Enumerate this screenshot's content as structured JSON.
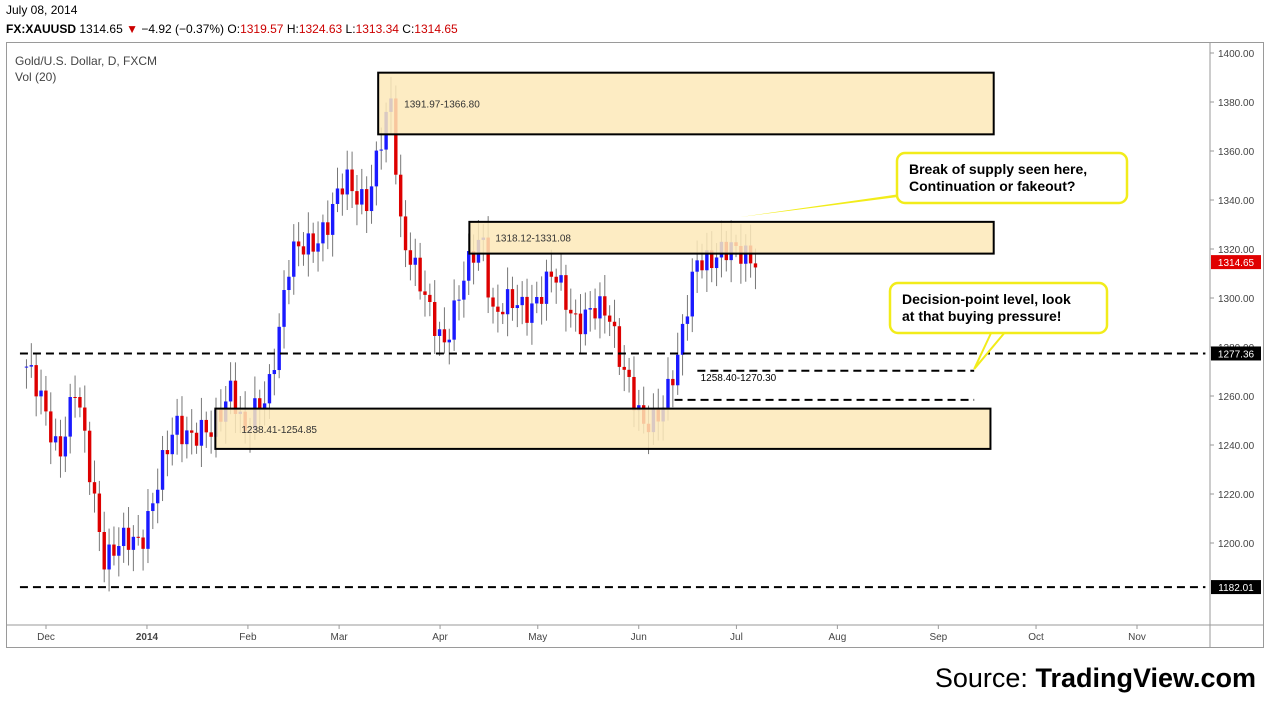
{
  "header": {
    "date": "July 08, 2014",
    "symbol": "FX:XAUUSD",
    "last": "1314.65",
    "change": "−4.92 (−0.37%)",
    "o_label": "O:",
    "o": "1319.57",
    "h_label": "H:",
    "h": "1324.63",
    "l_label": "L:",
    "l": "1313.34",
    "c_label": "C:",
    "c": "1314.65"
  },
  "chart_title": "Gold/U.S. Dollar, D, FXCM",
  "volume_label": "Vol (20)",
  "source_prefix": "Source: ",
  "source_brand": "TradingView.com",
  "colors": {
    "up": "#1a1aff",
    "down": "#dd0000",
    "zone_fill": "#fde9b8",
    "callout": "#f2ec1a",
    "last_price_bg": "#e00000"
  },
  "chart_data": {
    "type": "candlestick",
    "title": "Gold/U.S. Dollar, D, FXCM",
    "ylim": [
      1172,
      1405
    ],
    "y_ticks": [
      "1400.00",
      "1380.00",
      "1360.00",
      "1340.00",
      "1320.00",
      "1300.00",
      "1280.00",
      "1260.00",
      "1240.00",
      "1220.00",
      "1200.00"
    ],
    "x_range": [
      "2013-11-23",
      "2014-11-22"
    ],
    "x_ticks": [
      {
        "date": "2013-12-01",
        "label": "Dec",
        "bold": false
      },
      {
        "date": "2014-01-01",
        "label": "2014",
        "bold": true
      },
      {
        "date": "2014-02-01",
        "label": "Feb",
        "bold": false
      },
      {
        "date": "2014-03-01",
        "label": "Mar",
        "bold": false
      },
      {
        "date": "2014-04-01",
        "label": "Apr",
        "bold": false
      },
      {
        "date": "2014-05-01",
        "label": "May",
        "bold": false
      },
      {
        "date": "2014-06-01",
        "label": "Jun",
        "bold": false
      },
      {
        "date": "2014-07-01",
        "label": "Jul",
        "bold": false
      },
      {
        "date": "2014-08-01",
        "label": "Aug",
        "bold": false
      },
      {
        "date": "2014-09-01",
        "label": "Sep",
        "bold": false
      },
      {
        "date": "2014-10-01",
        "label": "Oct",
        "bold": false
      },
      {
        "date": "2014-11-01",
        "label": "Nov",
        "bold": false
      }
    ],
    "path_points": [
      {
        "date": "2013-11-25",
        "price": 1272
      },
      {
        "date": "2013-12-05",
        "price": 1238
      },
      {
        "date": "2013-12-10",
        "price": 1262
      },
      {
        "date": "2013-12-19",
        "price": 1195
      },
      {
        "date": "2013-12-30",
        "price": 1202
      },
      {
        "date": "2014-01-10",
        "price": 1248
      },
      {
        "date": "2014-01-21",
        "price": 1243
      },
      {
        "date": "2014-01-27",
        "price": 1267
      },
      {
        "date": "2014-01-31",
        "price": 1243
      },
      {
        "date": "2014-02-07",
        "price": 1262
      },
      {
        "date": "2014-02-14",
        "price": 1315
      },
      {
        "date": "2014-02-26",
        "price": 1331
      },
      {
        "date": "2014-03-03",
        "price": 1348
      },
      {
        "date": "2014-03-10",
        "price": 1340
      },
      {
        "date": "2014-03-17",
        "price": 1380
      },
      {
        "date": "2014-03-20",
        "price": 1330
      },
      {
        "date": "2014-03-28",
        "price": 1295
      },
      {
        "date": "2014-04-02",
        "price": 1283
      },
      {
        "date": "2014-04-14",
        "price": 1327
      },
      {
        "date": "2014-04-17",
        "price": 1295
      },
      {
        "date": "2014-04-28",
        "price": 1297
      },
      {
        "date": "2014-05-06",
        "price": 1308
      },
      {
        "date": "2014-05-13",
        "price": 1292
      },
      {
        "date": "2014-05-23",
        "price": 1294
      },
      {
        "date": "2014-06-02",
        "price": 1245
      },
      {
        "date": "2014-06-06",
        "price": 1252
      },
      {
        "date": "2014-06-13",
        "price": 1273
      },
      {
        "date": "2014-06-19",
        "price": 1318
      },
      {
        "date": "2014-06-26",
        "price": 1316
      },
      {
        "date": "2014-07-03",
        "price": 1321
      },
      {
        "date": "2014-07-08",
        "price": 1314.65
      }
    ],
    "zones": [
      {
        "label": "1391.97-1366.80",
        "start": "2014-03-13",
        "end": "2014-09-18",
        "high": 1391.97,
        "low": 1366.8
      },
      {
        "label": "1318.12-1331.08",
        "start": "2014-04-10",
        "end": "2014-09-18",
        "high": 1331.08,
        "low": 1318.12
      },
      {
        "label": "1238.41-1254.85",
        "start": "2014-01-22",
        "end": "2014-09-17",
        "high": 1254.85,
        "low": 1238.41
      }
    ],
    "levels": [
      {
        "price": 1277.36,
        "label": "1277.36",
        "start": "2013-11-23",
        "end": "2014-11-22",
        "axis_tag": true
      },
      {
        "price": 1182.01,
        "label": "1182.01",
        "start": "2013-11-23",
        "end": "2014-11-22",
        "axis_tag": true
      },
      {
        "price": 1270.3,
        "label": "",
        "start": "2014-06-19",
        "end": "2014-09-12",
        "axis_tag": false
      },
      {
        "price": 1258.4,
        "label": "",
        "start": "2014-06-12",
        "end": "2014-09-12",
        "axis_tag": false
      }
    ],
    "range_label": {
      "text": "1258.40-1270.30",
      "date": "2014-06-20",
      "price": 1265
    },
    "last_price": {
      "value": 1314.65,
      "label": "1314.65"
    },
    "callouts": [
      {
        "text": [
          "Break of supply seen here,",
          "Continuation or fakeout?"
        ],
        "tail_date": "2014-07-02",
        "tail_price": 1333
      },
      {
        "text": [
          "Decision-point level, look",
          "at that buying pressure!"
        ],
        "tail_date": "2014-09-12",
        "tail_price": 1271
      }
    ]
  }
}
